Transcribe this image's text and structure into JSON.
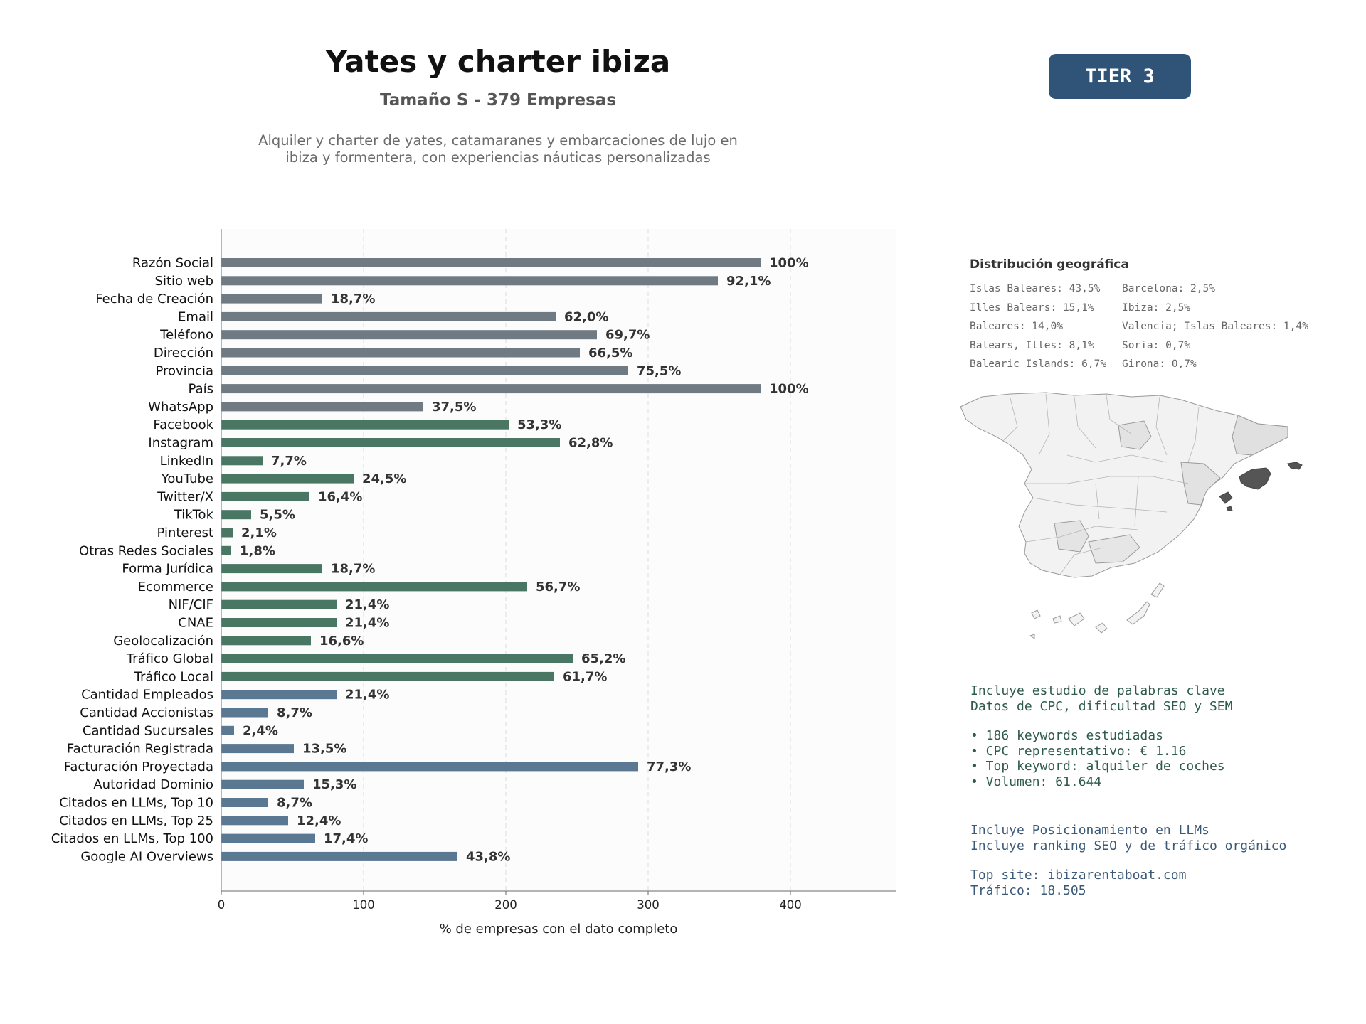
{
  "header": {
    "title": "Yates y charter ibiza",
    "subtitle": "Tamaño S - 379 Empresas",
    "description_line1": "Alquiler y charter de yates, catamaranes y embarcaciones de lujo en",
    "description_line2": "ibiza y formentera, con experiencias náuticas personalizadas",
    "tier": "TIER 3"
  },
  "chart_data": {
    "type": "bar",
    "orientation": "horizontal",
    "xlabel": "% de empresas con el dato completo",
    "ylabel": "",
    "xlim": [
      0,
      474
    ],
    "xticks": [
      0,
      100,
      200,
      300,
      400
    ],
    "grid": "x-dashed",
    "colors": {
      "gray": "#6f7a82",
      "green": "#4a7664",
      "blue": "#5a7892"
    },
    "categories": [
      "Razón Social",
      "Sitio web",
      "Fecha de Creación",
      "Email",
      "Teléfono",
      "Dirección",
      "Provincia",
      "País",
      "WhatsApp",
      "Facebook",
      "Instagram",
      "LinkedIn",
      "YouTube",
      "Twitter/X",
      "TikTok",
      "Pinterest",
      "Otras Redes Sociales",
      "Forma Jurídica",
      "Ecommerce",
      "NIF/CIF",
      "CNAE",
      "Geolocalización",
      "Tráfico Global",
      "Tráfico Local",
      "Cantidad Empleados",
      "Cantidad Accionistas",
      "Cantidad Sucursales",
      "Facturación Registrada",
      "Facturación Proyectada",
      "Autoridad Dominio",
      "Citados en LLMs, Top 10",
      "Citados en LLMs, Top 25",
      "Citados en LLMs, Top 100",
      "Google AI Overviews"
    ],
    "values": [
      379,
      349,
      71,
      235,
      264,
      252,
      286,
      379,
      142,
      202,
      238,
      29,
      93,
      62,
      21,
      8,
      7,
      71,
      215,
      81,
      81,
      63,
      247,
      234,
      81,
      33,
      9,
      51,
      293,
      58,
      33,
      47,
      66,
      166
    ],
    "labels": [
      "100%",
      "92,1%",
      "18,7%",
      "62,0%",
      "69,7%",
      "66,5%",
      "75,5%",
      "100%",
      "37,5%",
      "53,3%",
      "62,8%",
      "7,7%",
      "24,5%",
      "16,4%",
      "5,5%",
      "2,1%",
      "1,8%",
      "18,7%",
      "56,7%",
      "21,4%",
      "21,4%",
      "16,6%",
      "65,2%",
      "61,7%",
      "21,4%",
      "8,7%",
      "2,4%",
      "13,5%",
      "77,3%",
      "15,3%",
      "8,7%",
      "12,4%",
      "17,4%",
      "43,8%"
    ],
    "groups": [
      "gray",
      "gray",
      "gray",
      "gray",
      "gray",
      "gray",
      "gray",
      "gray",
      "gray",
      "green",
      "green",
      "green",
      "green",
      "green",
      "green",
      "green",
      "green",
      "green",
      "green",
      "green",
      "green",
      "green",
      "green",
      "green",
      "blue",
      "blue",
      "blue",
      "blue",
      "blue",
      "blue",
      "blue",
      "blue",
      "blue",
      "blue"
    ]
  },
  "geo": {
    "title": "Distribución geográfica",
    "col1": [
      "Islas Baleares: 43,5%",
      "Illes Balears: 15,1%",
      "Baleares: 14,0%",
      "Balears, Illes: 8,1%",
      "Balearic Islands: 6,7%"
    ],
    "col2": [
      "Barcelona: 2,5%",
      "Ibiza: 2,5%",
      "Valencia; Islas Baleares: 1,4%",
      "Soria: 0,7%",
      "Girona: 0,7%"
    ]
  },
  "info_keywords": {
    "line1": "Incluye estudio de palabras clave",
    "line2": "Datos de CPC, dificultad SEO y SEM",
    "bullet1": "• 186 keywords estudiadas",
    "bullet2": "• CPC representativo: € 1.16",
    "bullet3": "• Top keyword: alquiler de coches",
    "bullet4": "• Volumen: 61.644"
  },
  "info_llm": {
    "line1": "Incluye Posicionamiento en LLMs",
    "line2": "Incluye ranking SEO y de tráfico orgánico",
    "line3": "Top site: ibizarentaboat.com",
    "line4": "Tráfico: 18.505"
  }
}
